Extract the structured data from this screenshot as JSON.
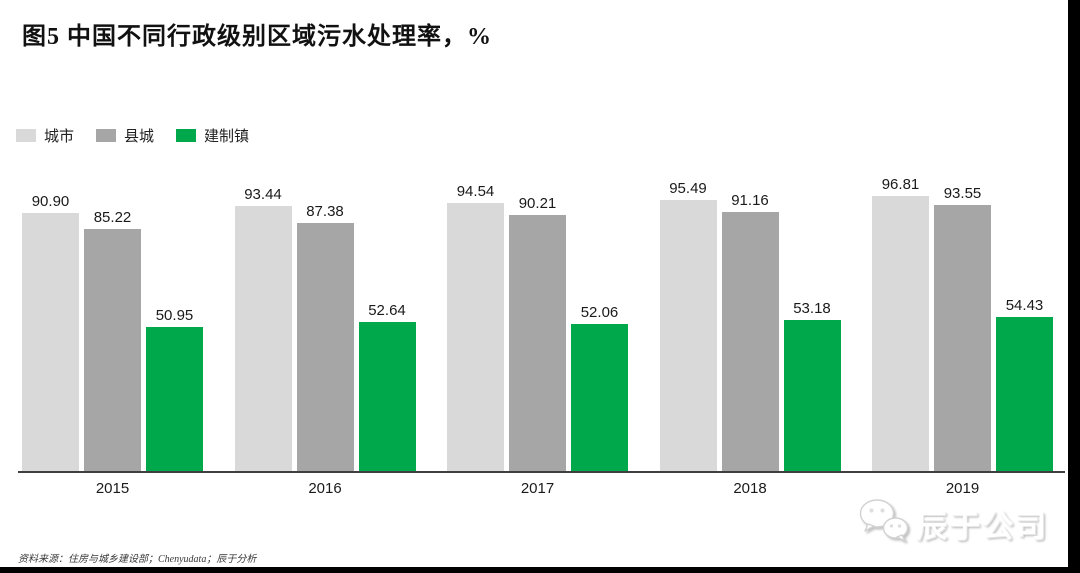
{
  "header": {
    "title": "图5 中国不同行政级别区域污水处理率，%"
  },
  "legend": {
    "items": [
      {
        "id": "city",
        "label": "城市",
        "color": "#d9d9d9"
      },
      {
        "id": "county",
        "label": "县城",
        "color": "#a6a6a6"
      },
      {
        "id": "town",
        "label": "建制镇",
        "color": "#00a84c"
      }
    ]
  },
  "chart_data": {
    "type": "bar",
    "title": "图5 中国不同行政级别区域污水处理率，%",
    "categories": [
      "2015",
      "2016",
      "2017",
      "2018",
      "2019"
    ],
    "series": [
      {
        "id": "city",
        "name": "城市",
        "color": "#d9d9d9",
        "values": [
          90.9,
          93.44,
          94.54,
          95.49,
          96.81
        ]
      },
      {
        "id": "county",
        "name": "县城",
        "color": "#a6a6a6",
        "values": [
          85.22,
          87.38,
          90.21,
          91.16,
          93.55
        ]
      },
      {
        "id": "town",
        "name": "建制镇",
        "color": "#00a84c",
        "values": [
          50.95,
          52.64,
          52.06,
          53.18,
          54.43
        ]
      }
    ],
    "xlabel": "",
    "ylabel": "",
    "ylim": [
      0,
      100
    ],
    "grid": false,
    "y_axis_visible": false,
    "legend_position": "top-left",
    "value_labels": true,
    "value_label_decimals": 2
  },
  "footer": {
    "source": "资料来源：住房与城乡建设部；Chenyudata；辰于分析",
    "brand": "辰于公司"
  },
  "colors": {
    "axis": "#3f3f3f",
    "background": "#ffffff",
    "edge": "#000000"
  }
}
